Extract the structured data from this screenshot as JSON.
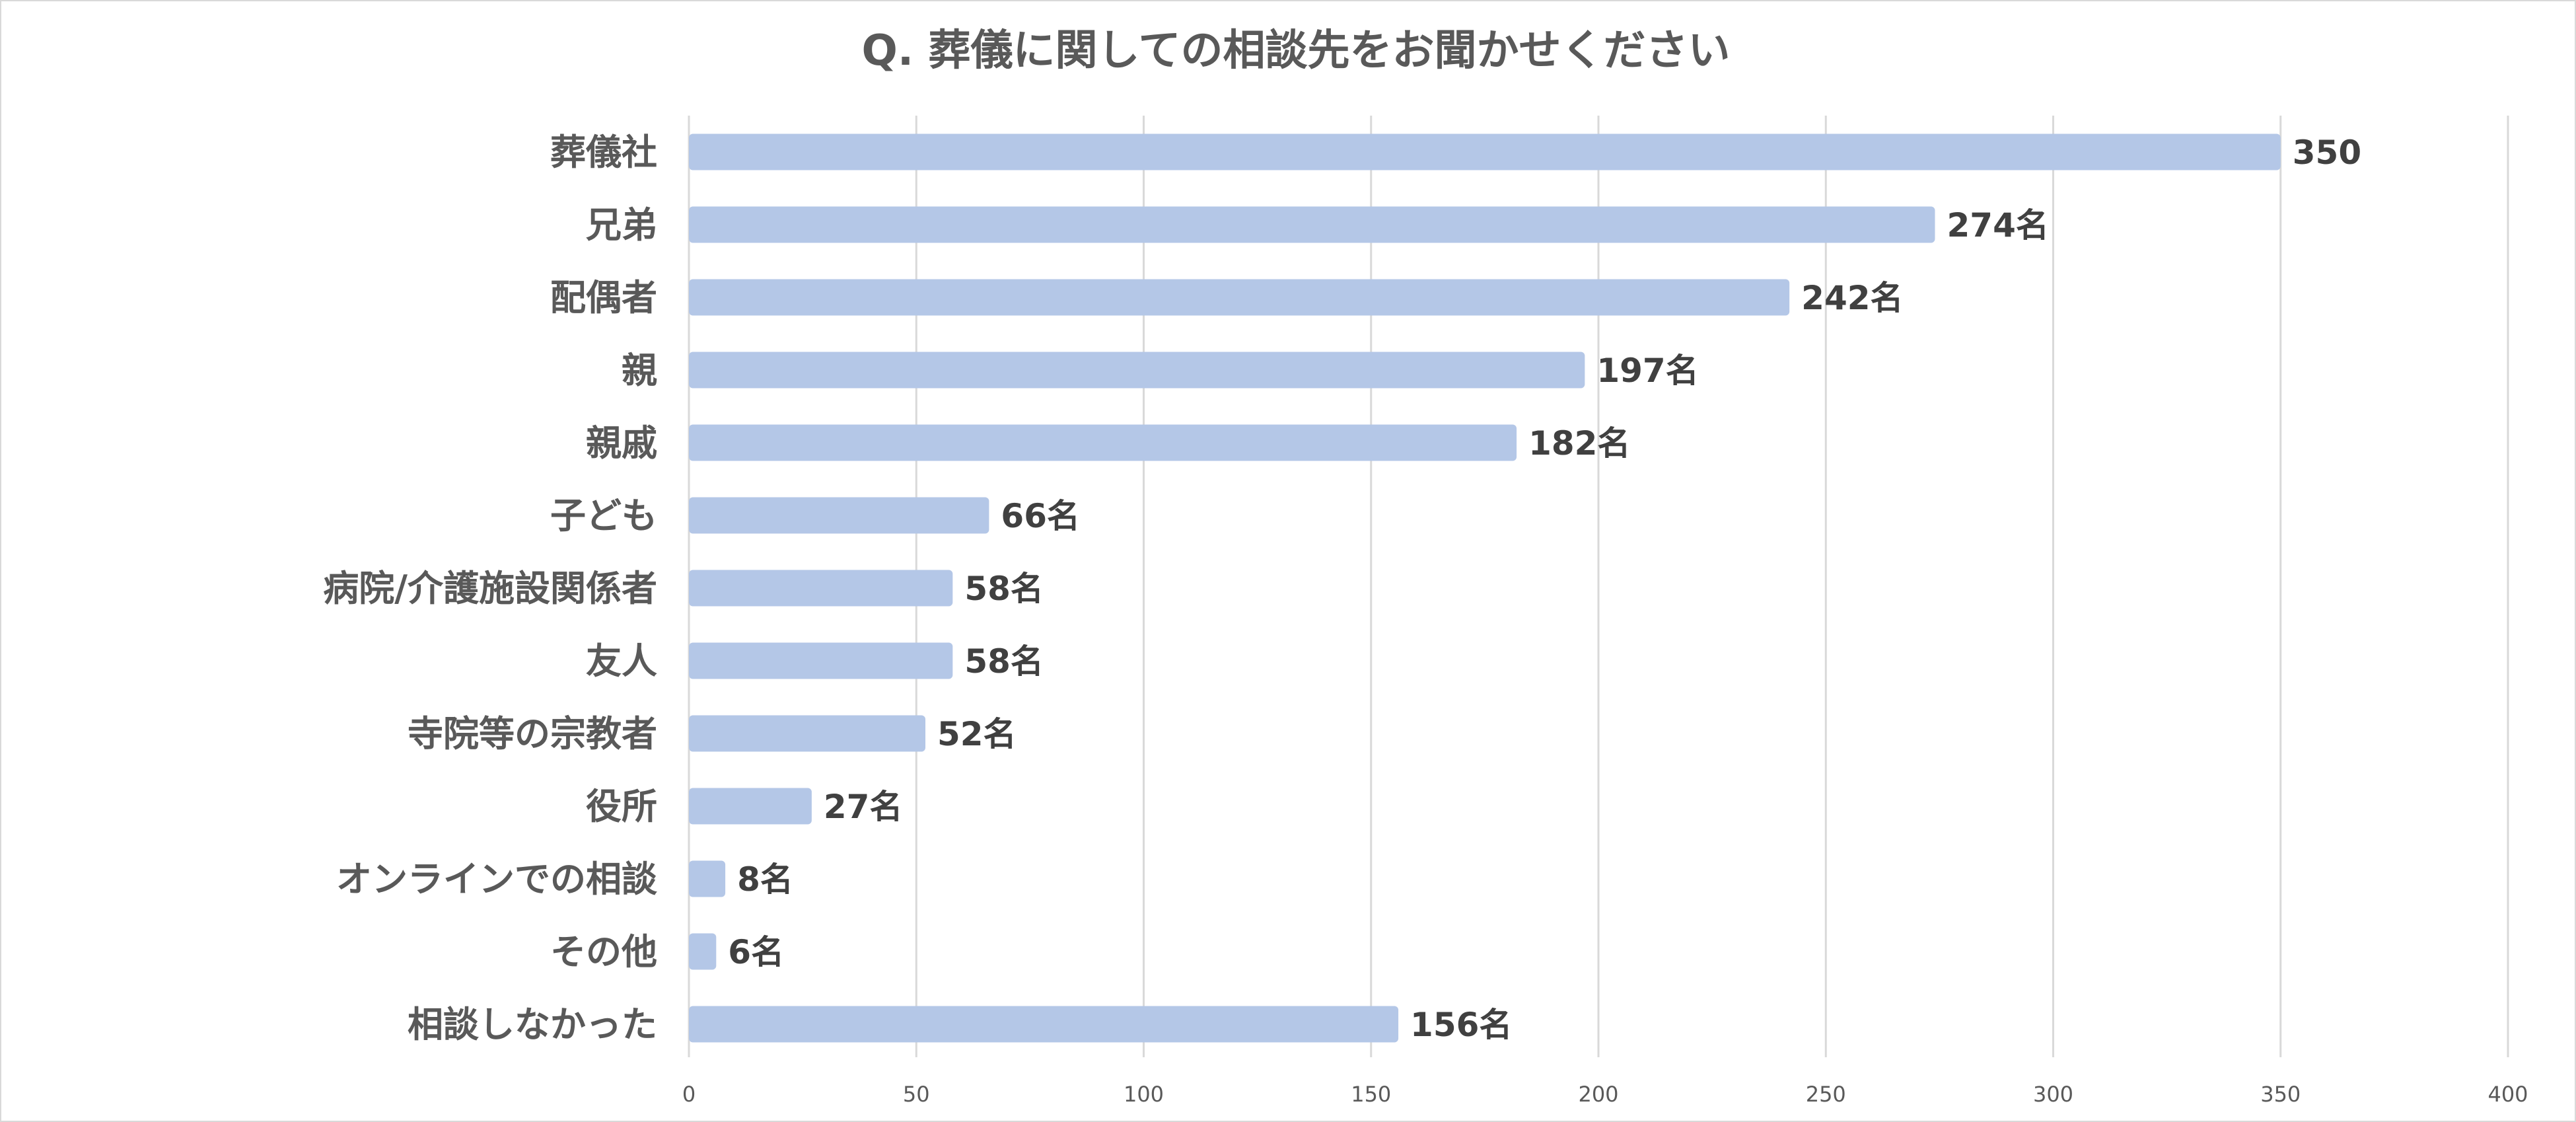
{
  "chart_data": {
    "type": "bar",
    "orientation": "horizontal",
    "title": "Q. 葬儀に関しての相談先をお聞かせください",
    "categories": [
      "葬儀社",
      "兄弟",
      "配偶者",
      "親",
      "親戚",
      "子ども",
      "病院/介護施設関係者",
      "友人",
      "寺院等の宗教者",
      "役所",
      "オンラインでの相談",
      "その他",
      "相談しなかった"
    ],
    "values": [
      350,
      274,
      242,
      197,
      182,
      66,
      58,
      58,
      52,
      27,
      8,
      6,
      156
    ],
    "data_labels": [
      "350",
      "274名",
      "242名",
      "197名",
      "182名",
      "66名",
      "58名",
      "58名",
      "52名",
      "27名",
      "8名",
      "6名",
      "156名"
    ],
    "xlim": [
      0,
      400
    ],
    "xticks": [
      0,
      50,
      100,
      150,
      200,
      250,
      300,
      350,
      400
    ],
    "xlabel": "",
    "ylabel": "",
    "grid": true,
    "legend": "none",
    "colors": {
      "bar": "#b4c7e7",
      "grid": "#d9d9d9",
      "text": "#595959",
      "data_text": "#404040"
    }
  }
}
